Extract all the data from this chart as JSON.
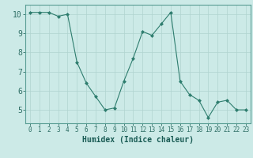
{
  "x": [
    0,
    1,
    2,
    3,
    4,
    5,
    6,
    7,
    8,
    9,
    10,
    11,
    12,
    13,
    14,
    15,
    16,
    17,
    18,
    19,
    20,
    21,
    22,
    23
  ],
  "y": [
    10.1,
    10.1,
    10.1,
    9.9,
    10.0,
    7.5,
    6.4,
    5.7,
    5.0,
    5.1,
    6.5,
    7.7,
    9.1,
    8.9,
    9.5,
    10.1,
    6.5,
    5.8,
    5.5,
    4.6,
    5.4,
    5.5,
    5.0,
    5.0
  ],
  "line_color": "#2e7d6e",
  "marker": "D",
  "marker_size": 2,
  "bg_color": "#cceae7",
  "grid_color": "#b0d4d0",
  "xlabel": "Humidex (Indice chaleur)",
  "ylim": [
    4.3,
    10.5
  ],
  "xlim": [
    -0.5,
    23.5
  ],
  "yticks": [
    5,
    6,
    7,
    8,
    9,
    10
  ],
  "xticks": [
    0,
    1,
    2,
    3,
    4,
    5,
    6,
    7,
    8,
    9,
    10,
    11,
    12,
    13,
    14,
    15,
    16,
    17,
    18,
    19,
    20,
    21,
    22,
    23
  ],
  "tick_color": "#2e6e65",
  "label_color": "#1a5c55",
  "spine_color": "#5a9e95",
  "xlabel_fontsize": 7,
  "ytick_fontsize": 7,
  "xtick_fontsize": 5.5
}
